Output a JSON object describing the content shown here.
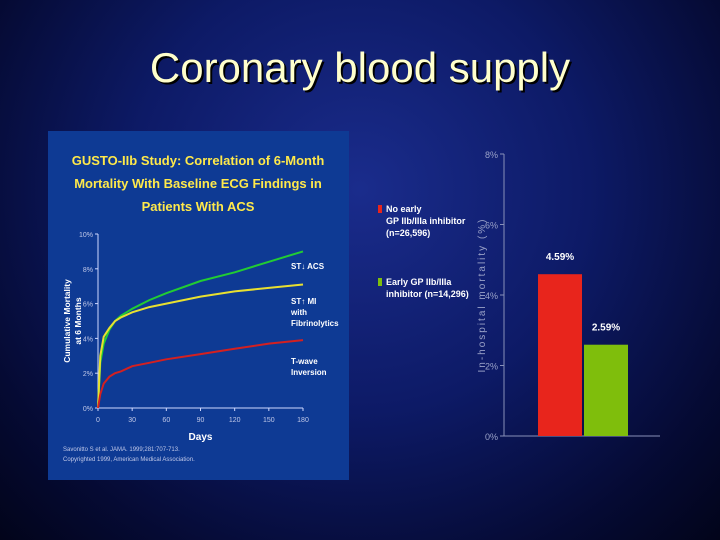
{
  "slide": {
    "title": "Coronary blood supply"
  },
  "colors": {
    "title": "#ffffcc",
    "background": "#0d1a66",
    "panel": "#0e3a94"
  },
  "chart_data": [
    {
      "type": "line",
      "title": "GUSTO-IIb Study: Correlation of 6-Month Mortality With Baseline ECG Findings in Patients With ACS",
      "title_lines": [
        "GUSTO-IIb Study: Correlation of 6-Month",
        "Mortality With Baseline ECG Findings in",
        "Patients With ACS"
      ],
      "xlabel": "Days",
      "ylabel_lines": [
        "Cumulative Mortality",
        "at 6 Months"
      ],
      "x_ticks": [
        0,
        30,
        60,
        90,
        120,
        150,
        180
      ],
      "x_tick_labels": [
        "0",
        "30",
        "60",
        "90",
        "120",
        "150",
        "180"
      ],
      "y_ticks": [
        0,
        2,
        4,
        6,
        8,
        10
      ],
      "y_tick_labels": [
        "0%",
        "2%",
        "4%",
        "6%",
        "8%",
        "10%"
      ],
      "xlim": [
        0,
        180
      ],
      "ylim": [
        0,
        10
      ],
      "series": [
        {
          "name": "ST↓ ACS",
          "label_lines": [
            "ST↓ ACS"
          ],
          "color": "#22cc33",
          "x": [
            0,
            2,
            5,
            10,
            15,
            20,
            30,
            45,
            60,
            90,
            120,
            150,
            180
          ],
          "y": [
            0,
            2.6,
            3.7,
            4.5,
            5.0,
            5.3,
            5.7,
            6.2,
            6.6,
            7.3,
            7.8,
            8.4,
            9.0
          ]
        },
        {
          "name": "ST↑ MI with Fibrinolytics",
          "label_lines": [
            "ST↑ MI",
            "with",
            "Fibrinolytics"
          ],
          "color": "#e8e030",
          "x": [
            0,
            2,
            5,
            10,
            15,
            20,
            30,
            45,
            60,
            90,
            120,
            150,
            180
          ],
          "y": [
            0,
            3.0,
            4.1,
            4.6,
            5.0,
            5.2,
            5.5,
            5.8,
            6.0,
            6.4,
            6.7,
            6.9,
            7.1
          ]
        },
        {
          "name": "T-wave Inversion",
          "label_lines": [
            "T-wave",
            "Inversion"
          ],
          "color": "#d42020",
          "x": [
            0,
            2,
            5,
            10,
            15,
            20,
            30,
            45,
            60,
            90,
            120,
            150,
            180
          ],
          "y": [
            0,
            0.8,
            1.4,
            1.8,
            2.0,
            2.1,
            2.4,
            2.6,
            2.8,
            3.1,
            3.4,
            3.7,
            3.9
          ]
        }
      ],
      "source_lines": [
        "Savonitto S et al. JAMA. 1999;281:707-713.",
        "Copyrighted 1999, American Medical Association."
      ]
    },
    {
      "type": "bar",
      "ylabel": "In-hospital mortality (%)",
      "y_ticks": [
        0,
        2,
        4,
        6,
        8
      ],
      "y_tick_labels": [
        "0%",
        "2%",
        "4%",
        "6%",
        "8%"
      ],
      "ylim": [
        0,
        8
      ],
      "categories": [
        "No early GP IIb/IIIa inhibitor (n=26,596)",
        "Early GP IIb/IIIa inhibitor (n=14,296)"
      ],
      "values": [
        4.59,
        2.59
      ],
      "value_labels": [
        "4.59%",
        "2.59%"
      ],
      "colors": [
        "#e8251c",
        "#7fbe0c"
      ],
      "legend": [
        {
          "lines": [
            "No early",
            "GP IIb/IIIa inhibitor",
            "(n=26,596)"
          ],
          "color": "#e8251c"
        },
        {
          "lines": [
            "Early GP IIb/IIIa",
            "inhibitor (n=14,296)"
          ],
          "color": "#7fbe0c"
        }
      ],
      "legend_position": "left"
    }
  ]
}
